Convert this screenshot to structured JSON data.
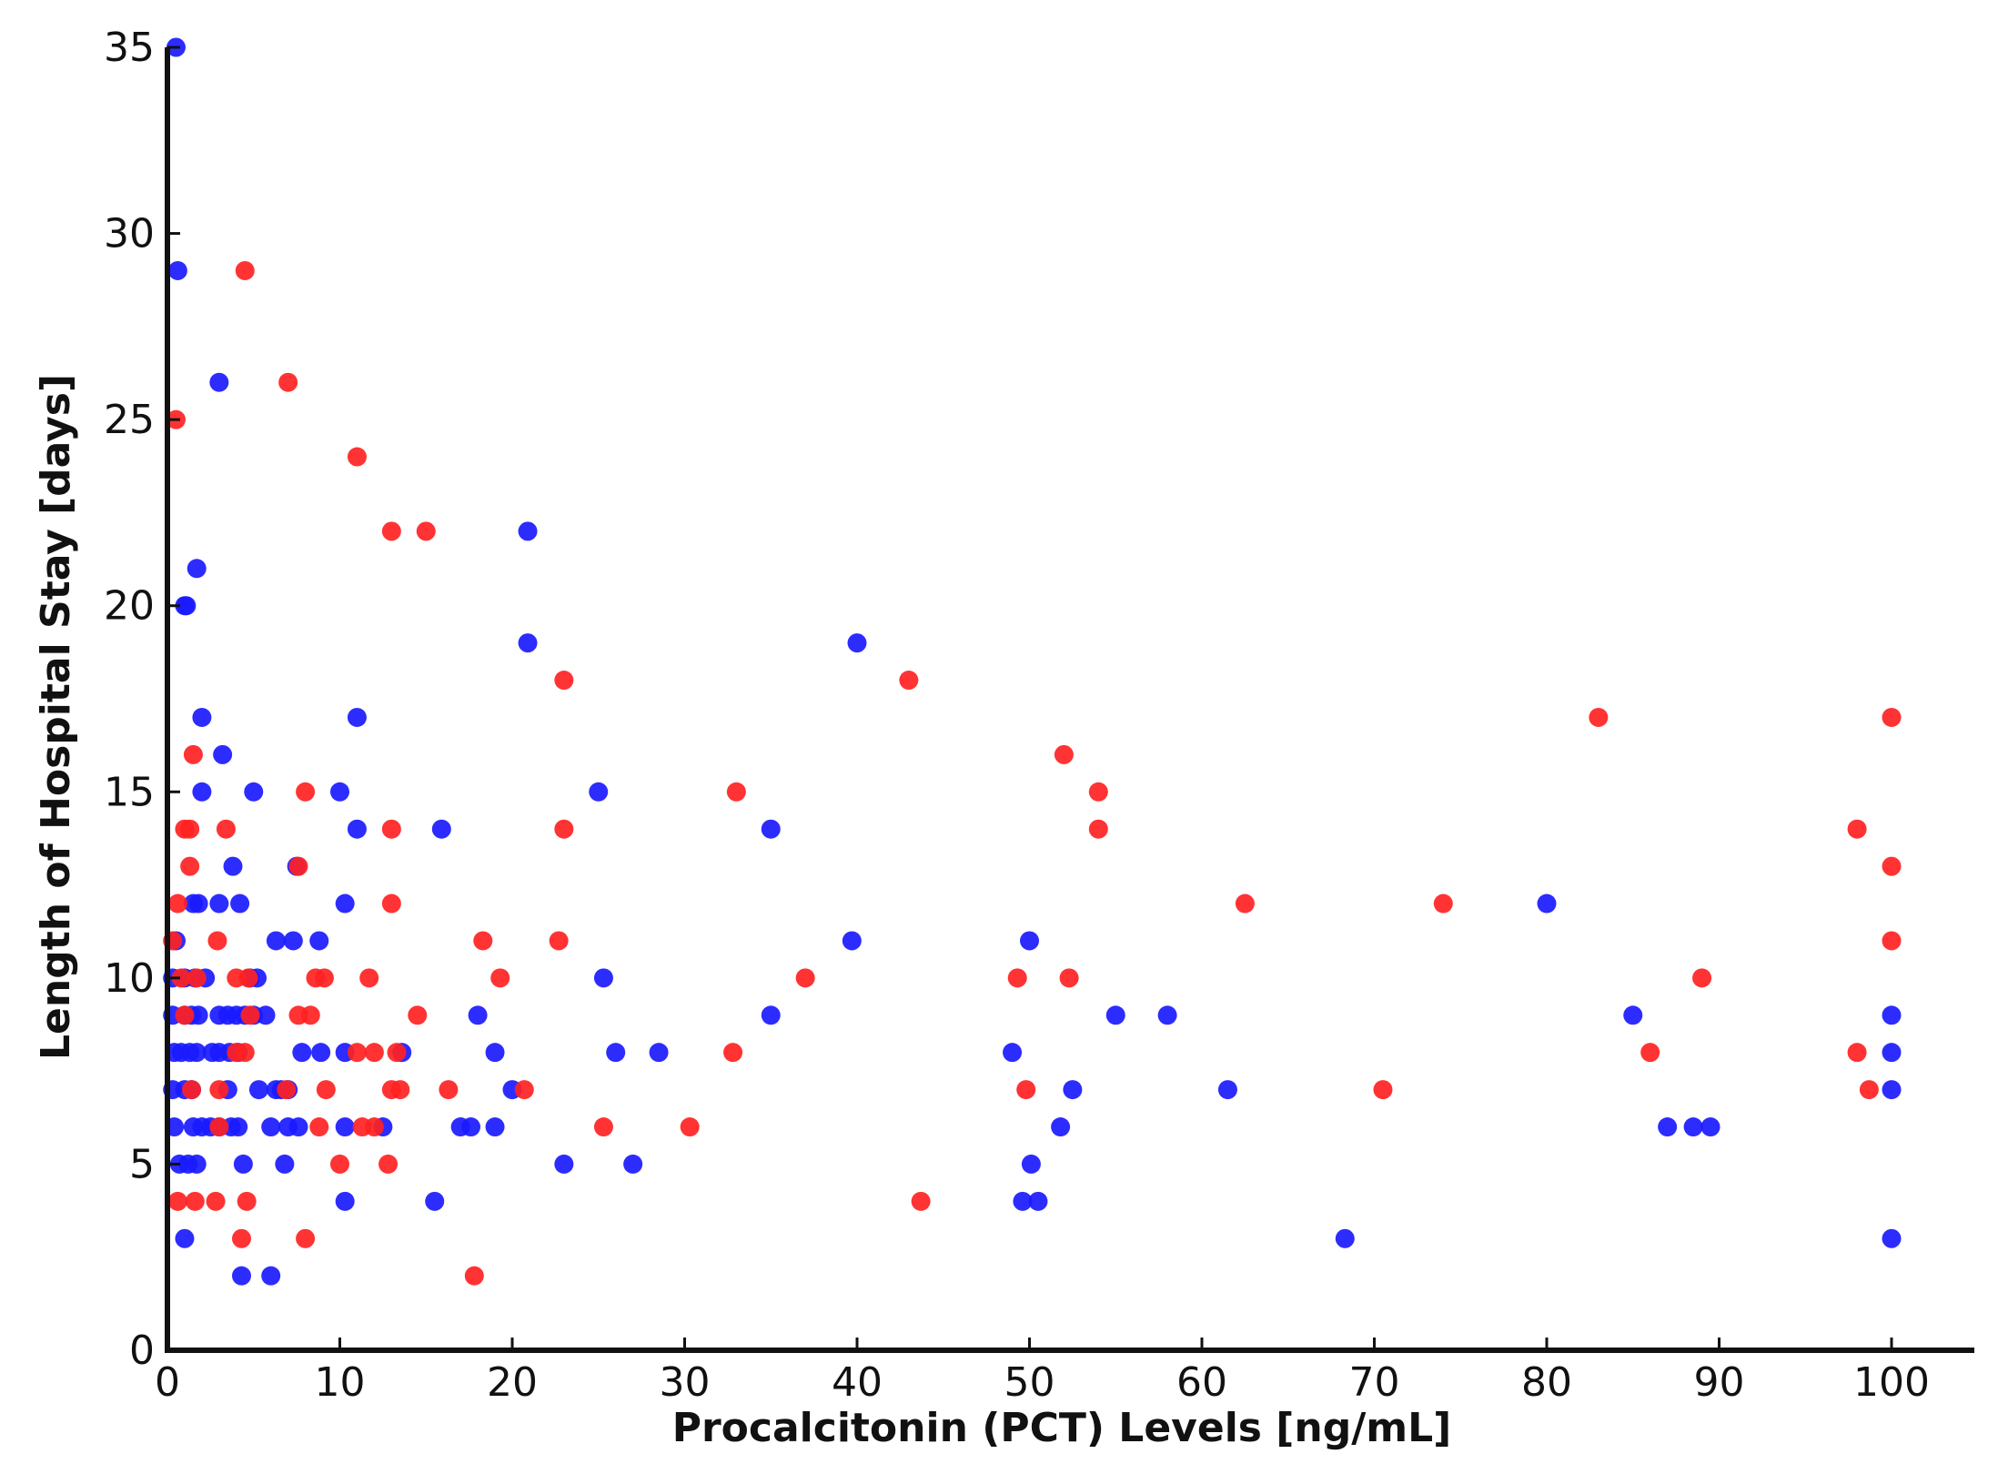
{
  "chart_data": {
    "type": "scatter",
    "xlabel": "Procalcitonin (PCT) Levels [ng/mL]",
    "ylabel": "Length of Hospital Stay [days]",
    "xlim": [
      0,
      105
    ],
    "ylim": [
      0,
      35
    ],
    "xticks": [
      "0",
      "10",
      "20",
      "30",
      "40",
      "50",
      "60",
      "70",
      "80",
      "90",
      "100"
    ],
    "yticks": [
      "0",
      "5",
      "10",
      "15",
      "20",
      "25",
      "30",
      "35"
    ],
    "grid": false,
    "colors": {
      "blue": "#1a1aff",
      "red": "#ff2222",
      "axis": "#111111"
    },
    "series": [
      {
        "color": "blue",
        "points": [
          [
            0.5,
            35
          ],
          [
            0.6,
            29
          ],
          [
            3.0,
            26
          ],
          [
            1.7,
            21
          ],
          [
            1.0,
            20
          ],
          [
            1.1,
            20
          ],
          [
            20.9,
            22
          ],
          [
            20.9,
            19
          ],
          [
            40.0,
            19
          ],
          [
            2.0,
            17
          ],
          [
            11.0,
            17
          ],
          [
            3.2,
            16
          ],
          [
            2.0,
            15
          ],
          [
            5.0,
            15
          ],
          [
            10.0,
            15
          ],
          [
            25.0,
            15
          ],
          [
            11.0,
            14
          ],
          [
            15.9,
            14
          ],
          [
            35.0,
            14
          ],
          [
            7.5,
            13
          ],
          [
            3.8,
            13
          ],
          [
            1.5,
            12
          ],
          [
            1.8,
            12
          ],
          [
            3.0,
            12
          ],
          [
            4.2,
            12
          ],
          [
            10.3,
            12
          ],
          [
            80.0,
            12
          ],
          [
            0.5,
            11
          ],
          [
            6.3,
            11
          ],
          [
            7.3,
            11
          ],
          [
            8.8,
            11
          ],
          [
            39.7,
            11
          ],
          [
            50.0,
            11
          ],
          [
            0.3,
            10
          ],
          [
            1.0,
            10
          ],
          [
            1.6,
            10
          ],
          [
            2.2,
            10
          ],
          [
            4.8,
            10
          ],
          [
            5.2,
            10
          ],
          [
            25.3,
            10
          ],
          [
            0.3,
            9
          ],
          [
            1.0,
            9
          ],
          [
            1.4,
            9
          ],
          [
            1.8,
            9
          ],
          [
            3.0,
            9
          ],
          [
            3.5,
            9
          ],
          [
            4.0,
            9
          ],
          [
            4.5,
            9
          ],
          [
            5.0,
            9
          ],
          [
            5.7,
            9
          ],
          [
            18.0,
            9
          ],
          [
            35.0,
            9
          ],
          [
            55.0,
            9
          ],
          [
            58.0,
            9
          ],
          [
            85.0,
            9
          ],
          [
            100.0,
            9
          ],
          [
            0.4,
            8
          ],
          [
            0.8,
            8
          ],
          [
            1.3,
            8
          ],
          [
            1.7,
            8
          ],
          [
            2.6,
            8
          ],
          [
            3.0,
            8
          ],
          [
            3.6,
            8
          ],
          [
            4.1,
            8
          ],
          [
            7.8,
            8
          ],
          [
            8.9,
            8
          ],
          [
            10.3,
            8
          ],
          [
            13.6,
            8
          ],
          [
            19.0,
            8
          ],
          [
            26.0,
            8
          ],
          [
            28.5,
            8
          ],
          [
            49.0,
            8
          ],
          [
            100.0,
            8
          ],
          [
            0.3,
            7
          ],
          [
            1.0,
            7
          ],
          [
            1.4,
            7
          ],
          [
            3.5,
            7
          ],
          [
            5.3,
            7
          ],
          [
            6.3,
            7
          ],
          [
            6.6,
            7
          ],
          [
            7.0,
            7
          ],
          [
            20.0,
            7
          ],
          [
            52.5,
            7
          ],
          [
            61.5,
            7
          ],
          [
            100.0,
            7
          ],
          [
            0.4,
            6
          ],
          [
            1.5,
            6
          ],
          [
            2.0,
            6
          ],
          [
            2.5,
            6
          ],
          [
            3.0,
            6
          ],
          [
            3.7,
            6
          ],
          [
            4.1,
            6
          ],
          [
            6.0,
            6
          ],
          [
            7.0,
            6
          ],
          [
            7.6,
            6
          ],
          [
            10.3,
            6
          ],
          [
            12.5,
            6
          ],
          [
            17.0,
            6
          ],
          [
            17.6,
            6
          ],
          [
            19.0,
            6
          ],
          [
            51.8,
            6
          ],
          [
            87.0,
            6
          ],
          [
            88.5,
            6
          ],
          [
            89.5,
            6
          ],
          [
            0.7,
            5
          ],
          [
            1.2,
            5
          ],
          [
            1.7,
            5
          ],
          [
            4.4,
            5
          ],
          [
            6.8,
            5
          ],
          [
            23.0,
            5
          ],
          [
            27.0,
            5
          ],
          [
            50.1,
            5
          ],
          [
            10.3,
            4
          ],
          [
            15.5,
            4
          ],
          [
            49.6,
            4
          ],
          [
            50.5,
            4
          ],
          [
            1.0,
            3
          ],
          [
            68.3,
            3
          ],
          [
            100.0,
            3
          ],
          [
            4.3,
            2
          ],
          [
            6.0,
            2
          ]
        ]
      },
      {
        "color": "red",
        "points": [
          [
            4.5,
            29
          ],
          [
            7.0,
            26
          ],
          [
            0.5,
            25
          ],
          [
            11.0,
            24
          ],
          [
            13.0,
            22
          ],
          [
            15.0,
            22
          ],
          [
            23.0,
            18
          ],
          [
            43.0,
            18
          ],
          [
            83.0,
            17
          ],
          [
            100.0,
            17
          ],
          [
            1.5,
            16
          ],
          [
            52.0,
            16
          ],
          [
            8.0,
            15
          ],
          [
            33.0,
            15
          ],
          [
            54.0,
            15
          ],
          [
            1.0,
            14
          ],
          [
            1.3,
            14
          ],
          [
            3.4,
            14
          ],
          [
            13.0,
            14
          ],
          [
            23.0,
            14
          ],
          [
            54.0,
            14
          ],
          [
            98.0,
            14
          ],
          [
            1.3,
            13
          ],
          [
            7.6,
            13
          ],
          [
            100.0,
            13
          ],
          [
            0.6,
            12
          ],
          [
            13.0,
            12
          ],
          [
            62.5,
            12
          ],
          [
            74.0,
            12
          ],
          [
            0.3,
            11
          ],
          [
            2.9,
            11
          ],
          [
            18.3,
            11
          ],
          [
            22.7,
            11
          ],
          [
            100.0,
            11
          ],
          [
            0.8,
            10
          ],
          [
            1.7,
            10
          ],
          [
            4.0,
            10
          ],
          [
            4.7,
            10
          ],
          [
            8.6,
            10
          ],
          [
            9.1,
            10
          ],
          [
            11.7,
            10
          ],
          [
            19.3,
            10
          ],
          [
            37.0,
            10
          ],
          [
            49.3,
            10
          ],
          [
            52.3,
            10
          ],
          [
            89.0,
            10
          ],
          [
            1.0,
            9
          ],
          [
            4.8,
            9
          ],
          [
            7.6,
            9
          ],
          [
            8.3,
            9
          ],
          [
            14.5,
            9
          ],
          [
            4.0,
            8
          ],
          [
            4.5,
            8
          ],
          [
            11.0,
            8
          ],
          [
            12.0,
            8
          ],
          [
            13.3,
            8
          ],
          [
            32.8,
            8
          ],
          [
            86.0,
            8
          ],
          [
            98.0,
            8
          ],
          [
            1.4,
            7
          ],
          [
            3.0,
            7
          ],
          [
            6.9,
            7
          ],
          [
            9.2,
            7
          ],
          [
            13.0,
            7
          ],
          [
            13.5,
            7
          ],
          [
            16.3,
            7
          ],
          [
            20.7,
            7
          ],
          [
            49.8,
            7
          ],
          [
            70.5,
            7
          ],
          [
            98.7,
            7
          ],
          [
            3.0,
            6
          ],
          [
            8.8,
            6
          ],
          [
            11.3,
            6
          ],
          [
            12.0,
            6
          ],
          [
            25.3,
            6
          ],
          [
            30.3,
            6
          ],
          [
            10.0,
            5
          ],
          [
            12.8,
            5
          ],
          [
            0.6,
            4
          ],
          [
            1.6,
            4
          ],
          [
            2.8,
            4
          ],
          [
            4.6,
            4
          ],
          [
            43.7,
            4
          ],
          [
            4.3,
            3
          ],
          [
            8.0,
            3
          ],
          [
            17.8,
            2
          ]
        ]
      }
    ]
  }
}
